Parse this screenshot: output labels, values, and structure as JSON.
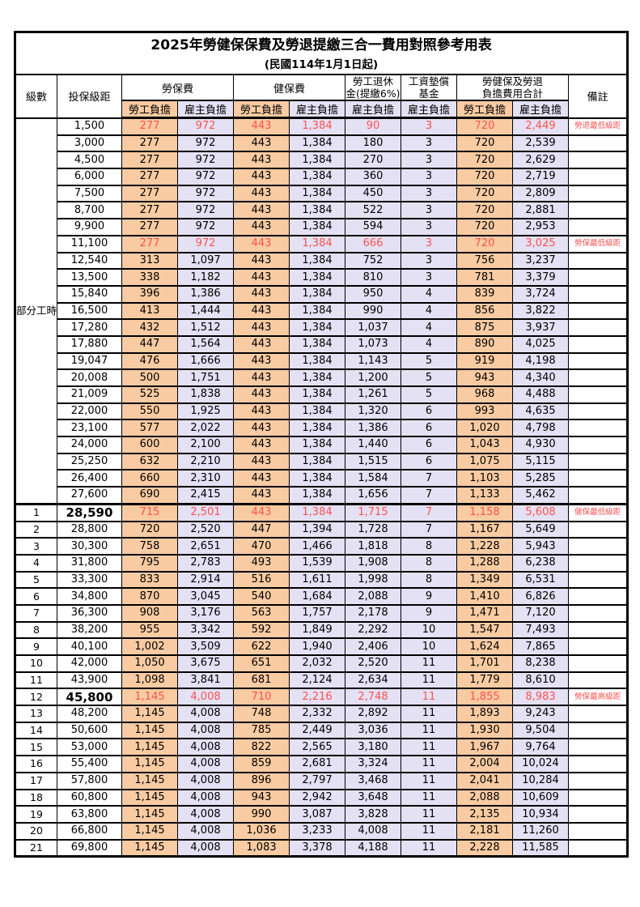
{
  "title": "2025年勞健保保費及勞退提繳三合一費用對照參考用表",
  "subtitle": "(民國114年1月1日起)",
  "columns": {
    "level": "級數",
    "bracket": "投保級距",
    "labor_insurance": "勞保費",
    "health_insurance": "健保費",
    "pension_line1": "勞工退休",
    "pension_line2": "金(提繳6%)",
    "wage_fund_line1": "工資墊償",
    "wage_fund_line2": "基金",
    "total_line1": "勞健保及勞退",
    "total_line2": "負擔費用合計",
    "remark": "備註",
    "employee_label": "勞工負擔",
    "employer_label": "雇主負擔"
  },
  "part_time": {
    "label": "部分工時",
    "span": 23
  },
  "colors": {
    "employee_fill": "#F9CBA2",
    "employer_fill": "#E3E1F3",
    "highlight_text": "#FF5050",
    "border": "#000000"
  },
  "rows": [
    {
      "level": "",
      "bracket": "1,500",
      "values": [
        "277",
        "972",
        "443",
        "1,384",
        "90",
        "3",
        "720",
        "2,449"
      ],
      "remark": "勞退最低級距",
      "red": true,
      "bold": false
    },
    {
      "level": "",
      "bracket": "3,000",
      "values": [
        "277",
        "972",
        "443",
        "1,384",
        "180",
        "3",
        "720",
        "2,539"
      ],
      "remark": "",
      "red": false,
      "bold": false
    },
    {
      "level": "",
      "bracket": "4,500",
      "values": [
        "277",
        "972",
        "443",
        "1,384",
        "270",
        "3",
        "720",
        "2,629"
      ],
      "remark": "",
      "red": false,
      "bold": false
    },
    {
      "level": "",
      "bracket": "6,000",
      "values": [
        "277",
        "972",
        "443",
        "1,384",
        "360",
        "3",
        "720",
        "2,719"
      ],
      "remark": "",
      "red": false,
      "bold": false
    },
    {
      "level": "",
      "bracket": "7,500",
      "values": [
        "277",
        "972",
        "443",
        "1,384",
        "450",
        "3",
        "720",
        "2,809"
      ],
      "remark": "",
      "red": false,
      "bold": false
    },
    {
      "level": "",
      "bracket": "8,700",
      "values": [
        "277",
        "972",
        "443",
        "1,384",
        "522",
        "3",
        "720",
        "2,881"
      ],
      "remark": "",
      "red": false,
      "bold": false
    },
    {
      "level": "",
      "bracket": "9,900",
      "values": [
        "277",
        "972",
        "443",
        "1,384",
        "594",
        "3",
        "720",
        "2,953"
      ],
      "remark": "",
      "red": false,
      "bold": false
    },
    {
      "level": "",
      "bracket": "11,100",
      "values": [
        "277",
        "972",
        "443",
        "1,384",
        "666",
        "3",
        "720",
        "3,025"
      ],
      "remark": "勞保最低級距",
      "red": true,
      "bold": false
    },
    {
      "level": "",
      "bracket": "12,540",
      "values": [
        "313",
        "1,097",
        "443",
        "1,384",
        "752",
        "3",
        "756",
        "3,237"
      ],
      "remark": "",
      "red": false,
      "bold": false
    },
    {
      "level": "",
      "bracket": "13,500",
      "values": [
        "338",
        "1,182",
        "443",
        "1,384",
        "810",
        "3",
        "781",
        "3,379"
      ],
      "remark": "",
      "red": false,
      "bold": false
    },
    {
      "level": "",
      "bracket": "15,840",
      "values": [
        "396",
        "1,386",
        "443",
        "1,384",
        "950",
        "4",
        "839",
        "3,724"
      ],
      "remark": "",
      "red": false,
      "bold": false
    },
    {
      "level": "",
      "bracket": "16,500",
      "values": [
        "413",
        "1,444",
        "443",
        "1,384",
        "990",
        "4",
        "856",
        "3,822"
      ],
      "remark": "",
      "red": false,
      "bold": false
    },
    {
      "level": "",
      "bracket": "17,280",
      "values": [
        "432",
        "1,512",
        "443",
        "1,384",
        "1,037",
        "4",
        "875",
        "3,937"
      ],
      "remark": "",
      "red": false,
      "bold": false
    },
    {
      "level": "",
      "bracket": "17,880",
      "values": [
        "447",
        "1,564",
        "443",
        "1,384",
        "1,073",
        "4",
        "890",
        "4,025"
      ],
      "remark": "",
      "red": false,
      "bold": false
    },
    {
      "level": "",
      "bracket": "19,047",
      "values": [
        "476",
        "1,666",
        "443",
        "1,384",
        "1,143",
        "5",
        "919",
        "4,198"
      ],
      "remark": "",
      "red": false,
      "bold": false
    },
    {
      "level": "",
      "bracket": "20,008",
      "values": [
        "500",
        "1,751",
        "443",
        "1,384",
        "1,200",
        "5",
        "943",
        "4,340"
      ],
      "remark": "",
      "red": false,
      "bold": false
    },
    {
      "level": "",
      "bracket": "21,009",
      "values": [
        "525",
        "1,838",
        "443",
        "1,384",
        "1,261",
        "5",
        "968",
        "4,488"
      ],
      "remark": "",
      "red": false,
      "bold": false
    },
    {
      "level": "",
      "bracket": "22,000",
      "values": [
        "550",
        "1,925",
        "443",
        "1,384",
        "1,320",
        "6",
        "993",
        "4,635"
      ],
      "remark": "",
      "red": false,
      "bold": false
    },
    {
      "level": "",
      "bracket": "23,100",
      "values": [
        "577",
        "2,022",
        "443",
        "1,384",
        "1,386",
        "6",
        "1,020",
        "4,798"
      ],
      "remark": "",
      "red": false,
      "bold": false
    },
    {
      "level": "",
      "bracket": "24,000",
      "values": [
        "600",
        "2,100",
        "443",
        "1,384",
        "1,440",
        "6",
        "1,043",
        "4,930"
      ],
      "remark": "",
      "red": false,
      "bold": false
    },
    {
      "level": "",
      "bracket": "25,250",
      "values": [
        "632",
        "2,210",
        "443",
        "1,384",
        "1,515",
        "6",
        "1,075",
        "5,115"
      ],
      "remark": "",
      "red": false,
      "bold": false
    },
    {
      "level": "",
      "bracket": "26,400",
      "values": [
        "660",
        "2,310",
        "443",
        "1,384",
        "1,584",
        "7",
        "1,103",
        "5,285"
      ],
      "remark": "",
      "red": false,
      "bold": false
    },
    {
      "level": "",
      "bracket": "27,600",
      "values": [
        "690",
        "2,415",
        "443",
        "1,384",
        "1,656",
        "7",
        "1,133",
        "5,462"
      ],
      "remark": "",
      "red": false,
      "bold": false
    },
    {
      "level": "1",
      "bracket": "28,590",
      "values": [
        "715",
        "2,501",
        "443",
        "1,384",
        "1,715",
        "7",
        "1,158",
        "5,608"
      ],
      "remark": "健保最低級距",
      "red": true,
      "bold": true
    },
    {
      "level": "2",
      "bracket": "28,800",
      "values": [
        "720",
        "2,520",
        "447",
        "1,394",
        "1,728",
        "7",
        "1,167",
        "5,649"
      ],
      "remark": "",
      "red": false,
      "bold": false
    },
    {
      "level": "3",
      "bracket": "30,300",
      "values": [
        "758",
        "2,651",
        "470",
        "1,466",
        "1,818",
        "8",
        "1,228",
        "5,943"
      ],
      "remark": "",
      "red": false,
      "bold": false
    },
    {
      "level": "4",
      "bracket": "31,800",
      "values": [
        "795",
        "2,783",
        "493",
        "1,539",
        "1,908",
        "8",
        "1,288",
        "6,238"
      ],
      "remark": "",
      "red": false,
      "bold": false
    },
    {
      "level": "5",
      "bracket": "33,300",
      "values": [
        "833",
        "2,914",
        "516",
        "1,611",
        "1,998",
        "8",
        "1,349",
        "6,531"
      ],
      "remark": "",
      "red": false,
      "bold": false
    },
    {
      "level": "6",
      "bracket": "34,800",
      "values": [
        "870",
        "3,045",
        "540",
        "1,684",
        "2,088",
        "9",
        "1,410",
        "6,826"
      ],
      "remark": "",
      "red": false,
      "bold": false
    },
    {
      "level": "7",
      "bracket": "36,300",
      "values": [
        "908",
        "3,176",
        "563",
        "1,757",
        "2,178",
        "9",
        "1,471",
        "7,120"
      ],
      "remark": "",
      "red": false,
      "bold": false
    },
    {
      "level": "8",
      "bracket": "38,200",
      "values": [
        "955",
        "3,342",
        "592",
        "1,849",
        "2,292",
        "10",
        "1,547",
        "7,493"
      ],
      "remark": "",
      "red": false,
      "bold": false
    },
    {
      "level": "9",
      "bracket": "40,100",
      "values": [
        "1,002",
        "3,509",
        "622",
        "1,940",
        "2,406",
        "10",
        "1,624",
        "7,865"
      ],
      "remark": "",
      "red": false,
      "bold": false
    },
    {
      "level": "10",
      "bracket": "42,000",
      "values": [
        "1,050",
        "3,675",
        "651",
        "2,032",
        "2,520",
        "11",
        "1,701",
        "8,238"
      ],
      "remark": "",
      "red": false,
      "bold": false
    },
    {
      "level": "11",
      "bracket": "43,900",
      "values": [
        "1,098",
        "3,841",
        "681",
        "2,124",
        "2,634",
        "11",
        "1,779",
        "8,610"
      ],
      "remark": "",
      "red": false,
      "bold": false
    },
    {
      "level": "12",
      "bracket": "45,800",
      "values": [
        "1,145",
        "4,008",
        "710",
        "2,216",
        "2,748",
        "11",
        "1,855",
        "8,983"
      ],
      "remark": "勞保最高級距",
      "red": true,
      "bold": true
    },
    {
      "level": "13",
      "bracket": "48,200",
      "values": [
        "1,145",
        "4,008",
        "748",
        "2,332",
        "2,892",
        "11",
        "1,893",
        "9,243"
      ],
      "remark": "",
      "red": false,
      "bold": false
    },
    {
      "level": "14",
      "bracket": "50,600",
      "values": [
        "1,145",
        "4,008",
        "785",
        "2,449",
        "3,036",
        "11",
        "1,930",
        "9,504"
      ],
      "remark": "",
      "red": false,
      "bold": false
    },
    {
      "level": "15",
      "bracket": "53,000",
      "values": [
        "1,145",
        "4,008",
        "822",
        "2,565",
        "3,180",
        "11",
        "1,967",
        "9,764"
      ],
      "remark": "",
      "red": false,
      "bold": false
    },
    {
      "level": "16",
      "bracket": "55,400",
      "values": [
        "1,145",
        "4,008",
        "859",
        "2,681",
        "3,324",
        "11",
        "2,004",
        "10,024"
      ],
      "remark": "",
      "red": false,
      "bold": false
    },
    {
      "level": "17",
      "bracket": "57,800",
      "values": [
        "1,145",
        "4,008",
        "896",
        "2,797",
        "3,468",
        "11",
        "2,041",
        "10,284"
      ],
      "remark": "",
      "red": false,
      "bold": false
    },
    {
      "level": "18",
      "bracket": "60,800",
      "values": [
        "1,145",
        "4,008",
        "943",
        "2,942",
        "3,648",
        "11",
        "2,088",
        "10,609"
      ],
      "remark": "",
      "red": false,
      "bold": false
    },
    {
      "level": "19",
      "bracket": "63,800",
      "values": [
        "1,145",
        "4,008",
        "990",
        "3,087",
        "3,828",
        "11",
        "2,135",
        "10,934"
      ],
      "remark": "",
      "red": false,
      "bold": false
    },
    {
      "level": "20",
      "bracket": "66,800",
      "values": [
        "1,145",
        "4,008",
        "1,036",
        "3,233",
        "4,008",
        "11",
        "2,181",
        "11,260"
      ],
      "remark": "",
      "red": false,
      "bold": false
    },
    {
      "level": "21",
      "bracket": "69,800",
      "values": [
        "1,145",
        "4,008",
        "1,083",
        "3,378",
        "4,188",
        "11",
        "2,228",
        "11,585"
      ],
      "remark": "",
      "red": false,
      "bold": false
    }
  ]
}
